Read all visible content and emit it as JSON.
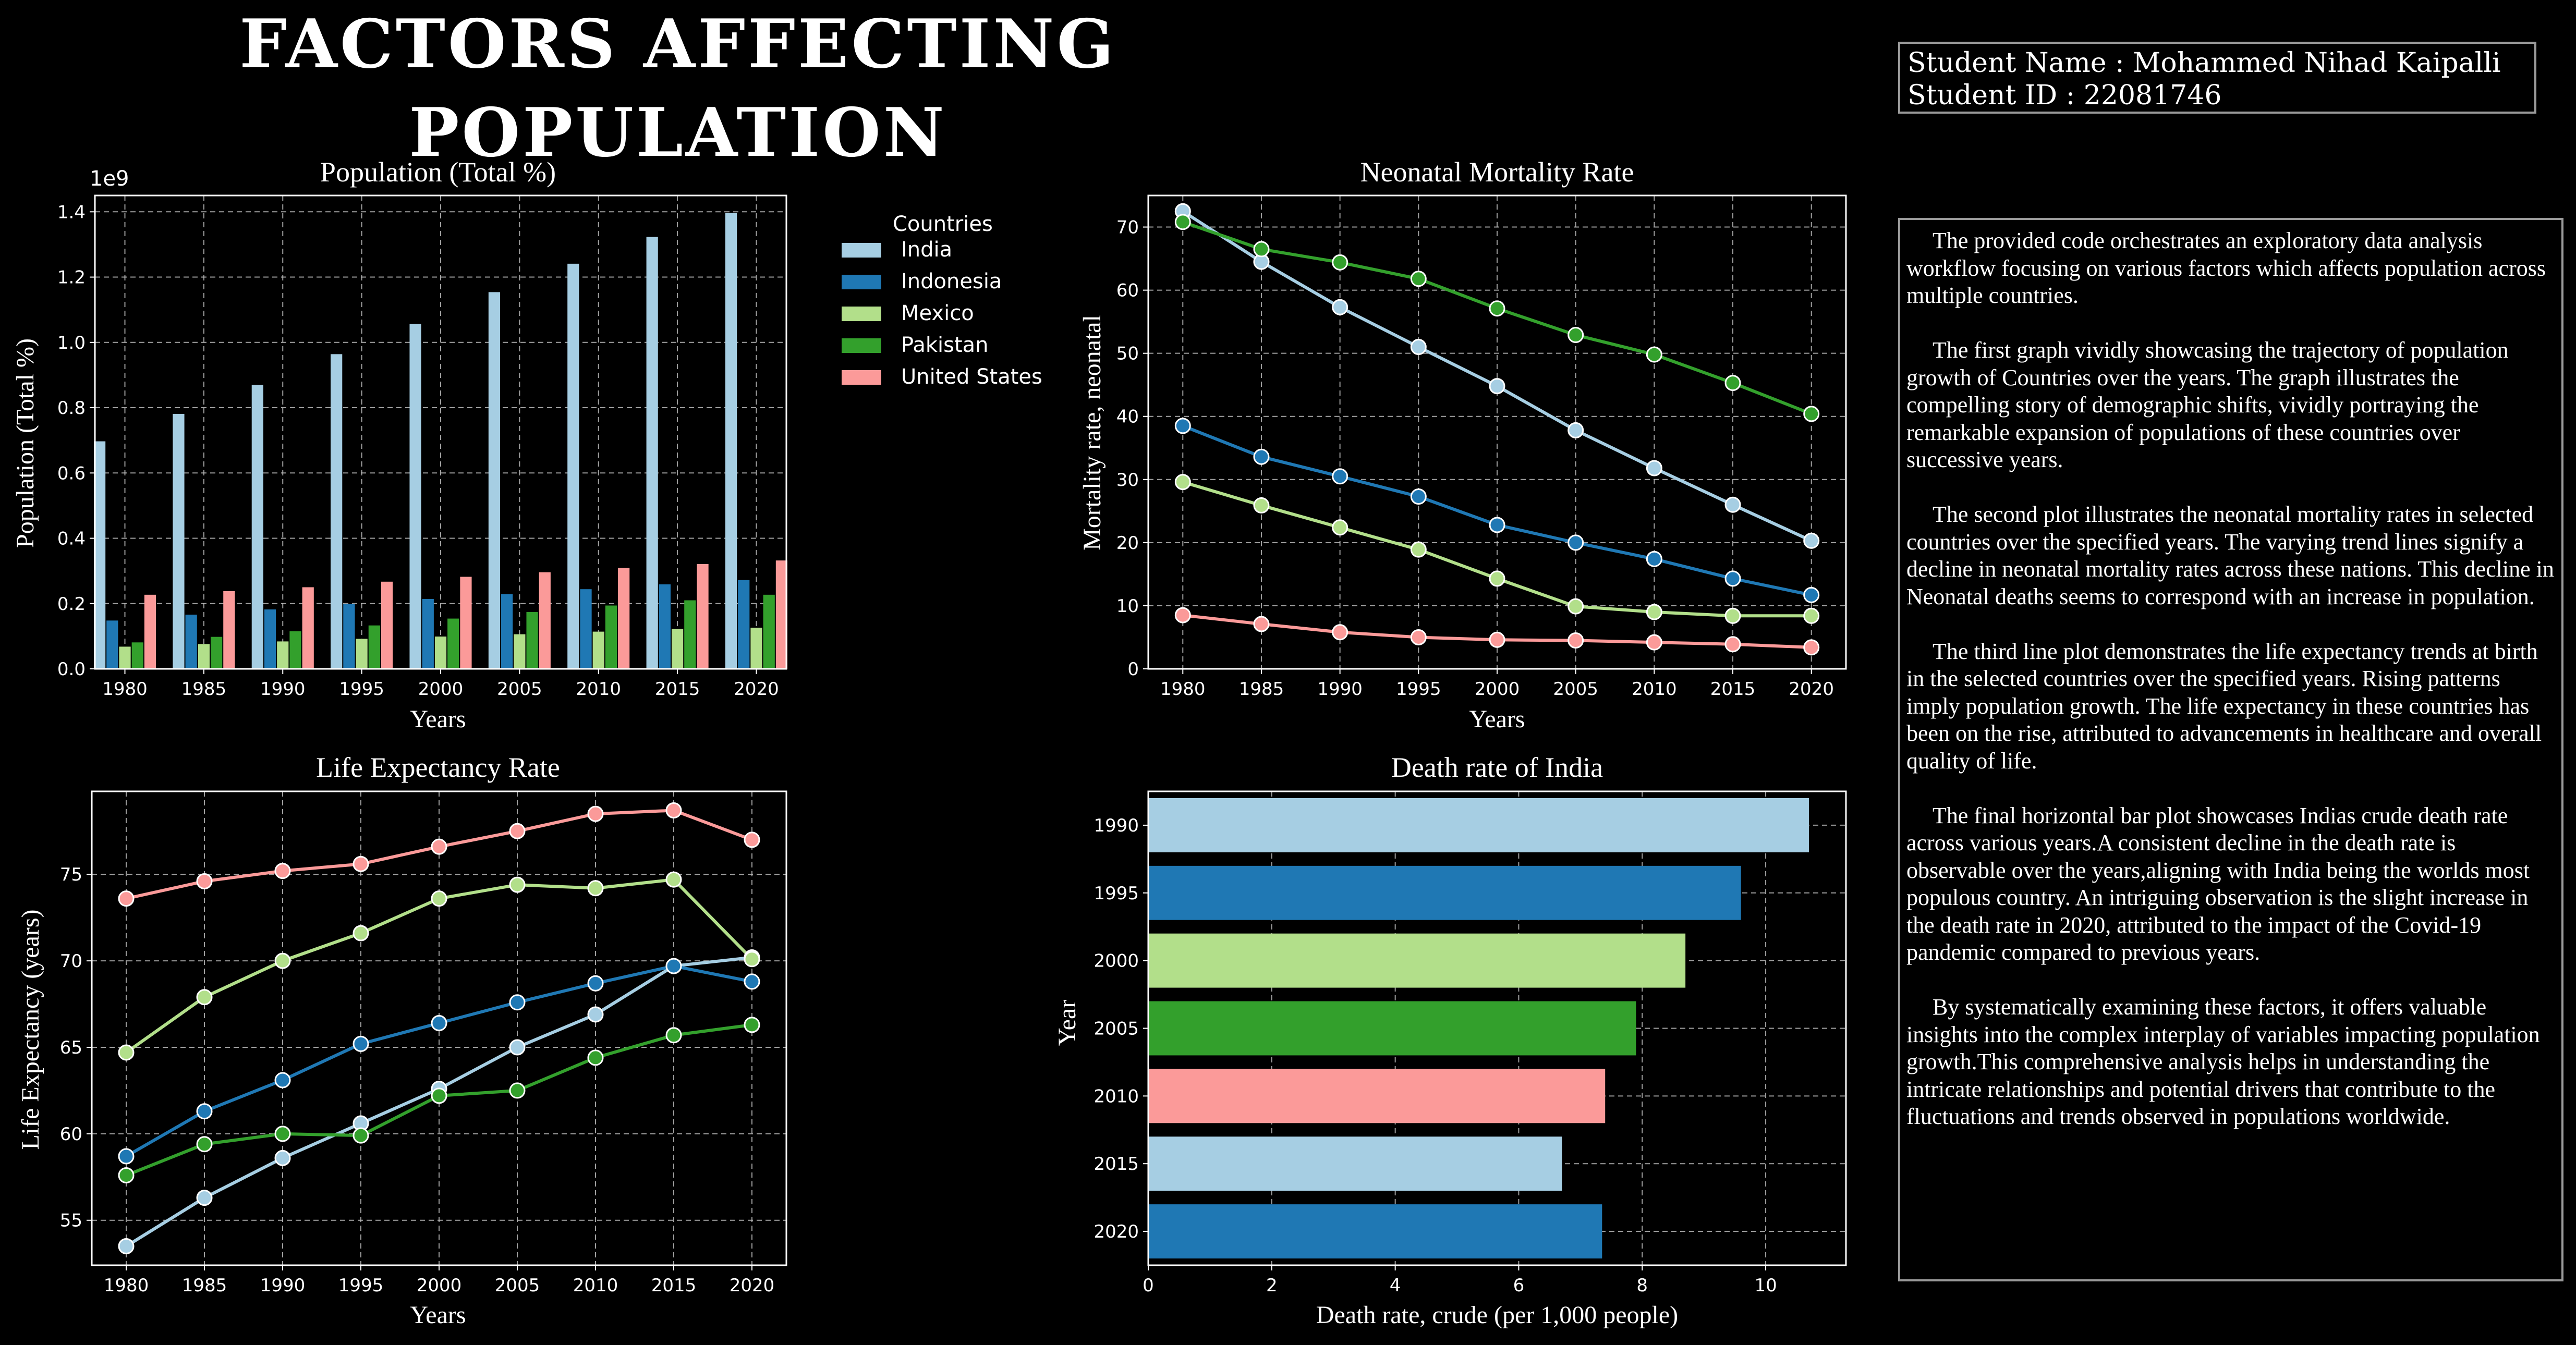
{
  "title": "FACTORS AFFECTING POPULATION",
  "student": {
    "name_line": "Student Name : Mohammed Nihad Kaipalli",
    "id_line": "Student ID : 22081746"
  },
  "description": [
    "The provided code orchestrates an exploratory data analysis workflow focusing on various factors which affects population across multiple countries.",
    "The first graph vividly showcasing the trajectory of population growth of Countries over the years. The graph illustrates the compelling story of demographic shifts, vividly portraying the remarkable expansion of populations of these countries over successive years.",
    "The second plot illustrates the neonatal mortality rates in selected countries over the specified years. The varying trend lines signify a decline in neonatal mortality rates across these nations. This decline in Neonatal deaths seems to correspond with an increase in population.",
    "The third line plot demonstrates the life expectancy trends at birth in the selected countries over the specified years. Rising patterns imply population growth. The life expectancy in these countries has been on the rise, attributed to advancements in healthcare and overall quality of life.",
    "The final horizontal bar plot showcases Indias crude death rate across various years.A consistent decline in the death rate is observable over the years,aligning with India being the worlds most populous country. An intriguing observation is the slight increase in the death rate in 2020, attributed to the impact of the Covid-19 pandemic compared to previous years.",
    "By systematically examining these factors, it offers valuable insights into the complex interplay of variables impacting population growth.This comprehensive analysis helps in understanding the intricate relationships and potential drivers that contribute to the fluctuations and trends observed in populations worldwide."
  ],
  "colors": {
    "India": "#a6cee3",
    "Indonesia": "#1f78b4",
    "Mexico": "#b2df8a",
    "Pakistan": "#33a02c",
    "United States": "#fb9a99",
    "frame": "#ffffff",
    "grid": "#bbbbbb"
  },
  "chart_data": [
    {
      "type": "bar",
      "title": "Population (Total %)",
      "xlabel": "Years",
      "ylabel": "Population (Total %)",
      "y_multiplier": "1e9",
      "ylim": [
        0,
        1.45
      ],
      "yticks": [
        "0.0",
        "0.2",
        "0.4",
        "0.6",
        "0.8",
        "1.0",
        "1.2",
        "1.4"
      ],
      "categories": [
        "1980",
        "1985",
        "1990",
        "1995",
        "2000",
        "2005",
        "2010",
        "2015",
        "2020"
      ],
      "legend_title": "Countries",
      "legend_placement": "outside-right",
      "grid": true,
      "series": [
        {
          "name": "India",
          "values": [
            0.697,
            0.781,
            0.87,
            0.964,
            1.057,
            1.154,
            1.241,
            1.323,
            1.396
          ]
        },
        {
          "name": "Indonesia",
          "values": [
            0.148,
            0.166,
            0.182,
            0.198,
            0.214,
            0.229,
            0.244,
            0.259,
            0.272
          ]
        },
        {
          "name": "Mexico",
          "values": [
            0.068,
            0.076,
            0.084,
            0.092,
            0.099,
            0.106,
            0.114,
            0.122,
            0.126
          ]
        },
        {
          "name": "Pakistan",
          "values": [
            0.081,
            0.098,
            0.115,
            0.133,
            0.154,
            0.174,
            0.194,
            0.21,
            0.227
          ]
        },
        {
          "name": "United States",
          "values": [
            0.227,
            0.238,
            0.25,
            0.267,
            0.282,
            0.296,
            0.309,
            0.321,
            0.332
          ]
        }
      ]
    },
    {
      "type": "line",
      "title": "Neonatal Mortality Rate",
      "xlabel": "Years",
      "ylabel": "Mortality rate, neonatal",
      "x": [
        1980,
        1985,
        1990,
        1995,
        2000,
        2005,
        2010,
        2015,
        2020
      ],
      "xlim": [
        1977.8,
        2022.2
      ],
      "ylim": [
        0,
        75
      ],
      "yticks": [
        0,
        10,
        20,
        30,
        40,
        50,
        60,
        70
      ],
      "grid": true,
      "series": [
        {
          "name": "India",
          "values": [
            72.5,
            64.5,
            57.3,
            51.0,
            44.8,
            37.8,
            31.8,
            26.0,
            20.3
          ]
        },
        {
          "name": "Indonesia",
          "values": [
            38.5,
            33.6,
            30.5,
            27.3,
            22.8,
            20.0,
            17.4,
            14.3,
            11.7
          ]
        },
        {
          "name": "Mexico",
          "values": [
            29.6,
            25.9,
            22.4,
            18.9,
            14.3,
            9.9,
            9.0,
            8.4,
            8.4
          ]
        },
        {
          "name": "Pakistan",
          "values": [
            70.8,
            66.5,
            64.4,
            61.8,
            57.1,
            52.9,
            49.8,
            45.3,
            40.4
          ]
        },
        {
          "name": "United States",
          "values": [
            8.5,
            7.1,
            5.8,
            5.0,
            4.6,
            4.5,
            4.2,
            3.9,
            3.4
          ]
        }
      ]
    },
    {
      "type": "line",
      "title": "Life Expectancy Rate",
      "xlabel": "Years",
      "ylabel": "Life Expectancy (years)",
      "x": [
        1980,
        1985,
        1990,
        1995,
        2000,
        2005,
        2010,
        2015,
        2020
      ],
      "xlim": [
        1977.8,
        2022.2
      ],
      "ylim": [
        52.4,
        79.8
      ],
      "yticks": [
        55,
        60,
        65,
        70,
        75
      ],
      "grid": true,
      "series": [
        {
          "name": "India",
          "values": [
            53.5,
            56.3,
            58.6,
            60.6,
            62.6,
            65.0,
            66.9,
            69.7,
            70.2
          ]
        },
        {
          "name": "Indonesia",
          "values": [
            58.7,
            61.3,
            63.1,
            65.2,
            66.4,
            67.6,
            68.7,
            69.7,
            68.8
          ]
        },
        {
          "name": "Mexico",
          "values": [
            64.7,
            67.9,
            70.0,
            71.6,
            73.6,
            74.4,
            74.2,
            74.7,
            70.1
          ]
        },
        {
          "name": "Pakistan",
          "values": [
            57.6,
            59.4,
            60.0,
            59.9,
            62.2,
            62.5,
            64.4,
            65.7,
            66.3
          ]
        },
        {
          "name": "United States",
          "values": [
            73.6,
            74.6,
            75.2,
            75.6,
            76.6,
            77.5,
            78.5,
            78.7,
            77.0
          ]
        }
      ]
    },
    {
      "type": "bar",
      "orientation": "horizontal",
      "title": "Death rate of India",
      "xlabel": "Death rate, crude (per 1,000 people)",
      "ylabel": "Year",
      "xlim": [
        0,
        11.3
      ],
      "xticks": [
        0,
        2,
        4,
        6,
        8,
        10
      ],
      "categories": [
        "1990",
        "1995",
        "2000",
        "2005",
        "2010",
        "2015",
        "2020"
      ],
      "values": [
        10.7,
        9.6,
        8.7,
        7.9,
        7.4,
        6.7,
        7.35
      ],
      "bar_colors": [
        "#a6cee3",
        "#1f78b4",
        "#b2df8a",
        "#33a02c",
        "#fb9a99",
        "#a6cee3",
        "#1f78b4"
      ],
      "grid": true
    }
  ]
}
